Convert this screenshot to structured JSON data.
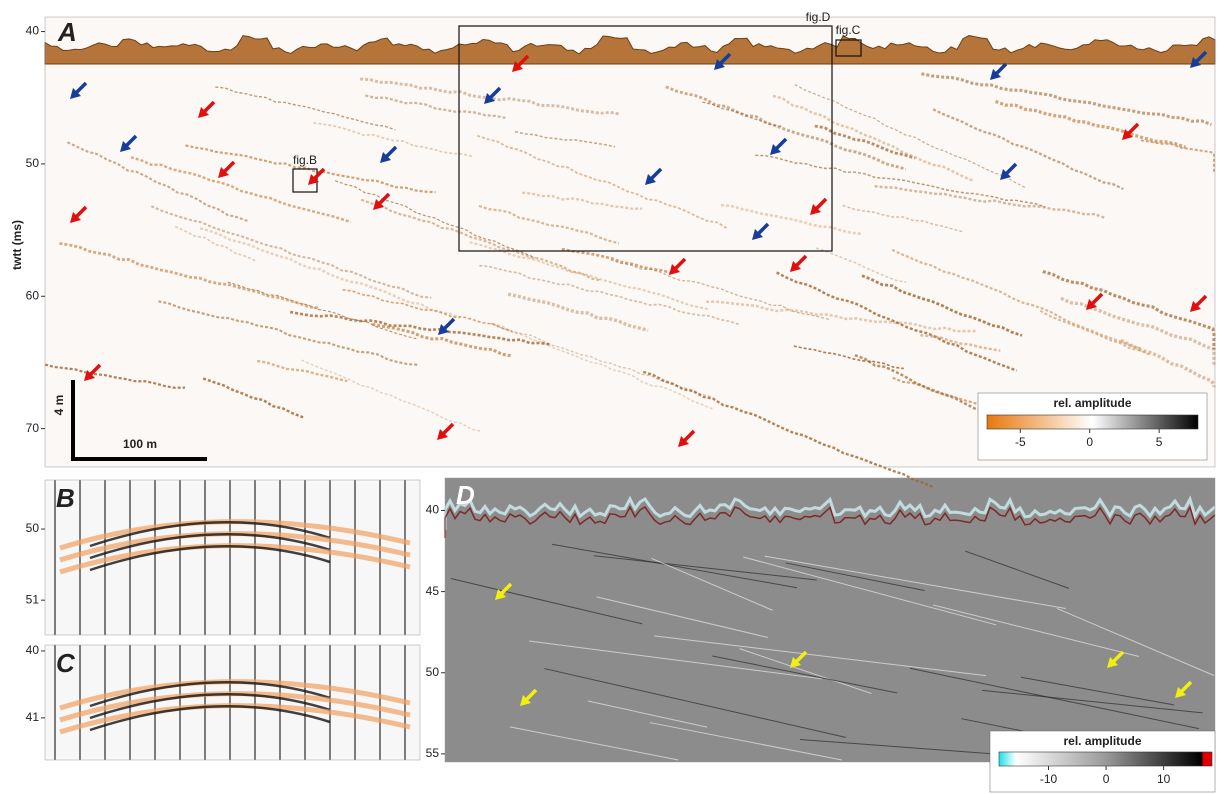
{
  "panels": [
    {
      "label": "A",
      "y_label": "twtt (ms)",
      "ylim": [
        38.9,
        72.9
      ],
      "yticks": [
        40,
        50,
        60,
        70
      ],
      "scale_bar_vertical": "4 m",
      "scale_bar_horizontal": "100 m",
      "boxes": [
        "fig.B",
        "fig.C",
        "fig.D"
      ],
      "colorbar": {
        "title": "rel. amplitude",
        "clim": [
          -7.4,
          7.8
        ],
        "ticks": [
          -5,
          0,
          5
        ]
      }
    },
    {
      "label": "B",
      "ylim": [
        49.31,
        51.49
      ],
      "yticks": [
        50,
        51
      ]
    },
    {
      "label": "C",
      "ylim": [
        39.91,
        41.63
      ],
      "yticks": [
        40,
        41
      ]
    },
    {
      "label": "D",
      "ylim": [
        38.0,
        55.5
      ],
      "yticks": [
        40,
        45,
        50,
        55
      ],
      "colorbar": {
        "title": "rel. amplitude",
        "clim": [
          -18.6,
          18.4
        ],
        "ticks": [
          -10,
          0,
          10
        ]
      }
    }
  ]
}
